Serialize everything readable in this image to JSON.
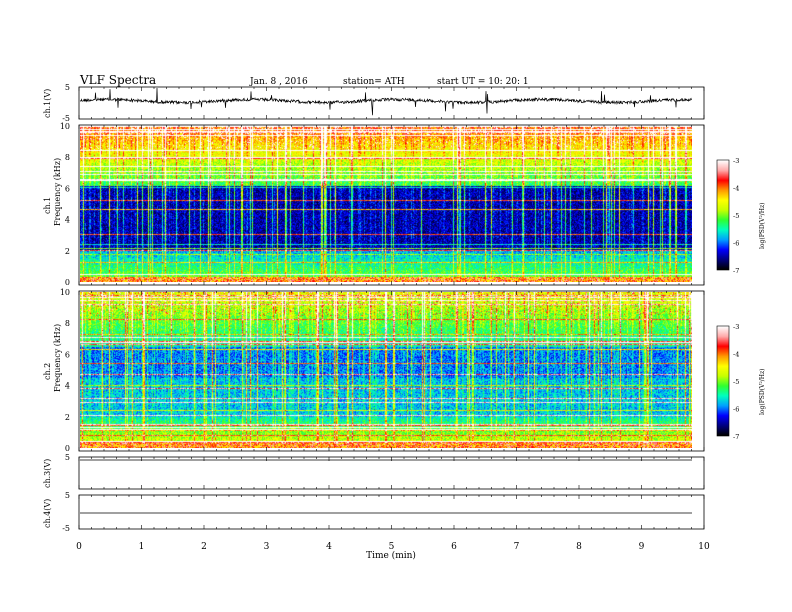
{
  "header": {
    "title": "VLF  Spectra",
    "date": "Jan.  8  ,  2016",
    "station": "station= ATH",
    "start": "start  UT  =    10: 20: 1"
  },
  "chart_data": [
    {
      "type": "line",
      "panel": "ch1-waveform",
      "ylabel": "ch.1(V)",
      "yticks": [
        "5",
        "-5"
      ],
      "ylim": [
        -5,
        5
      ],
      "series_color": "#000000"
    },
    {
      "type": "heatmap",
      "panel": "ch1-spectrogram",
      "ylabel_channel": "ch.1",
      "ylabel": "Frequency  (kHz)",
      "yticks": [
        "0",
        "2",
        "4",
        "6",
        "8",
        "10"
      ],
      "ylim": [
        0,
        10
      ],
      "colorbar": {
        "label": "log(PSD(V²/Hz)",
        "ticks": [
          "-3",
          "-4",
          "-5",
          "-6",
          "-7"
        ],
        "range": [
          -7,
          -3
        ]
      }
    },
    {
      "type": "heatmap",
      "panel": "ch2-spectrogram",
      "ylabel_channel": "ch.2",
      "ylabel": "Frequency  (kHz)",
      "yticks": [
        "0",
        "2",
        "4",
        "6",
        "8",
        "10"
      ],
      "ylim": [
        0,
        10
      ],
      "colorbar": {
        "label": "log(PSD(V²/Hz)",
        "ticks": [
          "-3",
          "-4",
          "-5",
          "-6",
          "-7"
        ],
        "range": [
          -7,
          -3
        ]
      }
    },
    {
      "type": "line",
      "panel": "ch3-waveform",
      "ylabel": "ch.3(V)",
      "yticks": [
        "5"
      ],
      "ylim": [
        -5,
        5
      ]
    },
    {
      "type": "line",
      "panel": "ch4-waveform",
      "ylabel": "ch.4(V)",
      "yticks": [
        "5",
        "-5"
      ],
      "ylim": [
        -5,
        5
      ]
    }
  ],
  "xaxis": {
    "label": "Time  (min)",
    "ticks": [
      "0",
      "1",
      "2",
      "3",
      "4",
      "5",
      "6",
      "7",
      "8",
      "9",
      "10"
    ],
    "xlim": [
      0,
      10
    ],
    "data_end": 9.8
  },
  "colors": {
    "colormap": [
      "#000000",
      "#000080",
      "#0000ff",
      "#00a0ff",
      "#00ffc0",
      "#30ff30",
      "#c8ff00",
      "#ffff00",
      "#ff9900",
      "#ff0000",
      "#ffaaaa",
      "#ffffff"
    ]
  }
}
